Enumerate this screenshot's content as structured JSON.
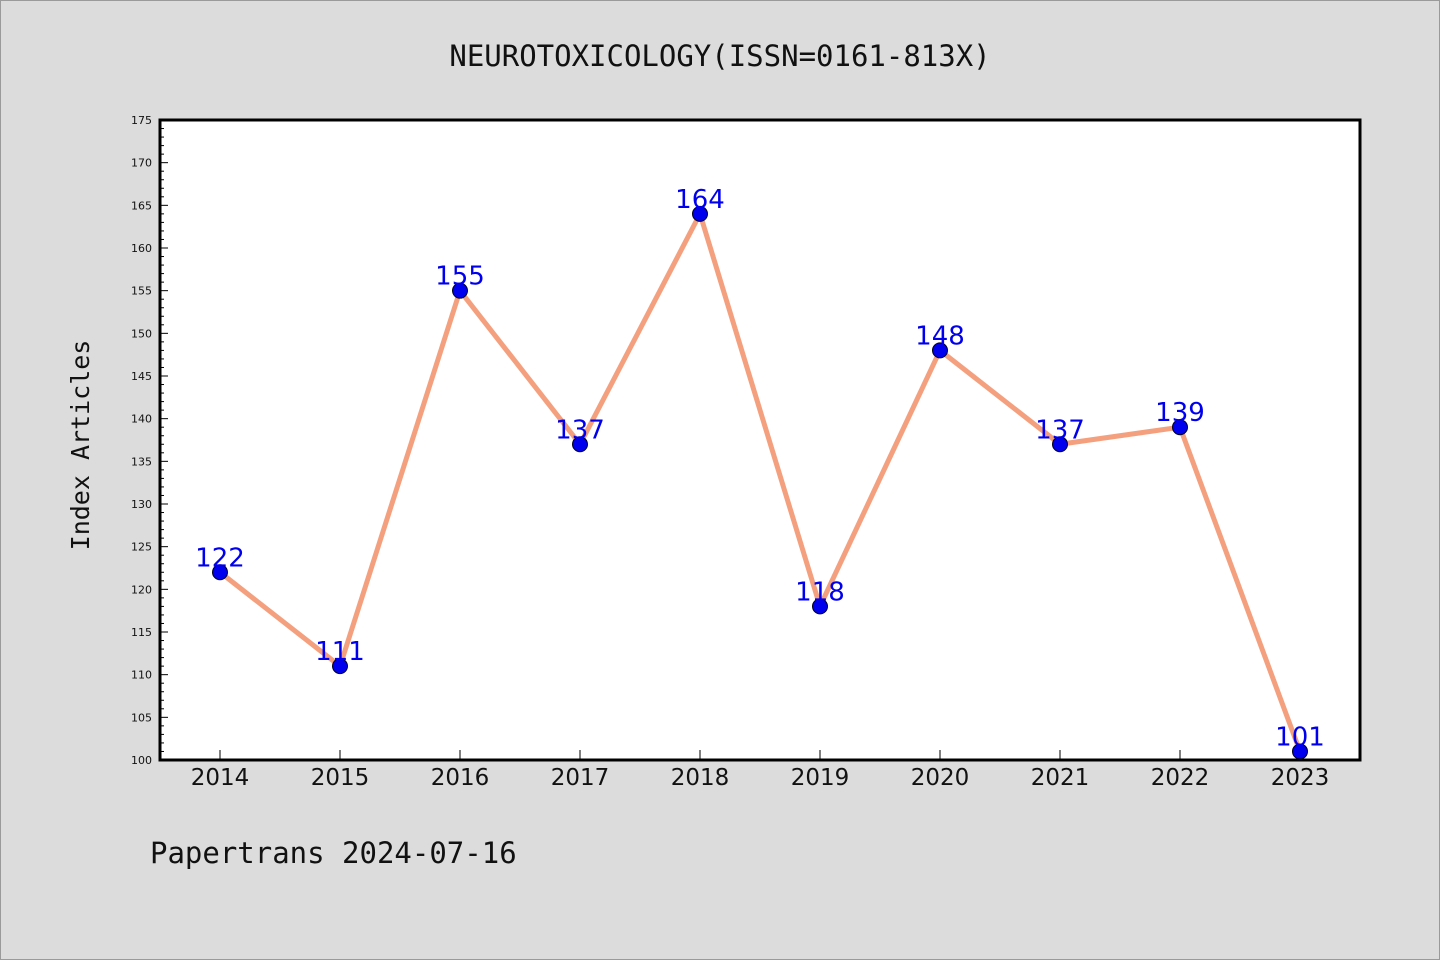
{
  "chart_data": {
    "type": "line",
    "title": "NEUROTOXICOLOGY(ISSN=0161-813X)",
    "ylabel": "Index Articles",
    "xlabel": "",
    "x": [
      "2014",
      "2015",
      "2016",
      "2017",
      "2018",
      "2019",
      "2020",
      "2021",
      "2022",
      "2023"
    ],
    "series": [
      {
        "values": [
          122,
          111,
          155,
          137,
          164,
          118,
          148,
          137,
          139,
          101
        ]
      }
    ],
    "ylim": [
      100,
      175
    ],
    "yticks": [
      "100",
      "105",
      "110",
      "115",
      "120",
      "125",
      "130",
      "135",
      "140",
      "145",
      "150",
      "155",
      "160",
      "165",
      "170",
      "175"
    ],
    "grid": false,
    "data_labels": true,
    "colors": {
      "line": "#f4a07e",
      "marker": "#0000ee",
      "label": "#0000ee",
      "background": "#dcdcdc",
      "plot_background": "#ffffff"
    }
  },
  "footer": "Papertrans 2024-07-16"
}
